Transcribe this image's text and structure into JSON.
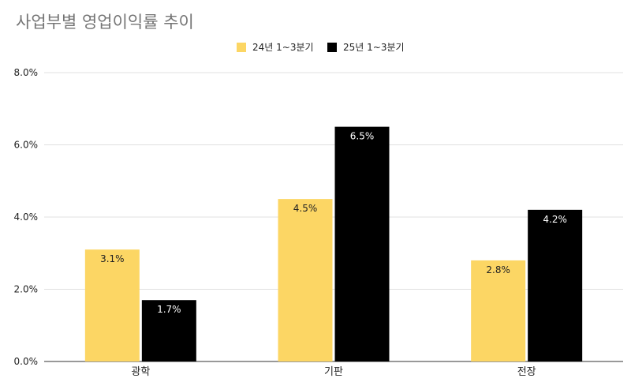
{
  "chart_data": {
    "type": "bar",
    "title": "사업부별 영업이익률 추이",
    "categories": [
      "광학",
      "기판",
      "전장"
    ],
    "series": [
      {
        "name": "24년 1~3분기",
        "values": [
          3.1,
          4.5,
          2.8
        ],
        "labels": [
          "3.1%",
          "4.5%",
          "2.8%"
        ],
        "color": "#FCD664",
        "label_color": "#222222"
      },
      {
        "name": "25년 1~3분기",
        "values": [
          1.7,
          6.5,
          4.2
        ],
        "labels": [
          "1.7%",
          "6.5%",
          "4.2%"
        ],
        "color": "#000000",
        "label_color": "#ffffff"
      }
    ],
    "ylim": [
      0,
      8
    ],
    "y_ticks": [
      0,
      2,
      4,
      6,
      8
    ],
    "y_tick_labels": [
      "0.0%",
      "2.0%",
      "4.0%",
      "6.0%",
      "8.0%"
    ],
    "xlabel": "",
    "ylabel": "",
    "grid": true,
    "legend_position": "top-center"
  }
}
